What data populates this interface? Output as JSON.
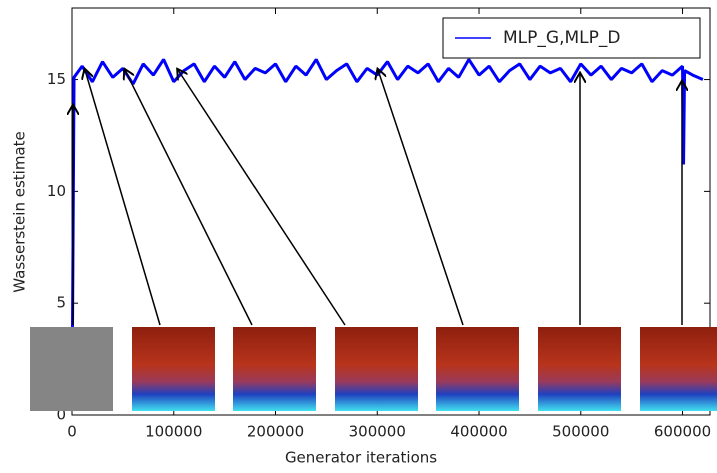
{
  "chart_data": {
    "type": "line",
    "xlabel": "Generator iterations",
    "ylabel": "Wasserstein estimate",
    "x": [
      0,
      2000,
      10000,
      20000,
      30000,
      40000,
      50000,
      60000,
      70000,
      80000,
      90000,
      100000,
      110000,
      120000,
      130000,
      140000,
      150000,
      160000,
      170000,
      180000,
      190000,
      200000,
      210000,
      220000,
      230000,
      240000,
      250000,
      260000,
      270000,
      280000,
      290000,
      300000,
      310000,
      320000,
      330000,
      340000,
      350000,
      360000,
      370000,
      380000,
      390000,
      400000,
      410000,
      420000,
      430000,
      440000,
      450000,
      460000,
      470000,
      480000,
      490000,
      500000,
      510000,
      520000,
      530000,
      540000,
      550000,
      560000,
      570000,
      580000,
      590000,
      600000,
      601000,
      602000,
      610000,
      620000
    ],
    "series": [
      {
        "name": "MLP_G,MLP_D",
        "color": "#0000ff",
        "values": [
          0.3,
          15.1,
          15.6,
          14.9,
          15.8,
          15.1,
          15.5,
          14.8,
          15.7,
          15.2,
          15.9,
          14.9,
          15.4,
          15.7,
          14.9,
          15.6,
          15.1,
          15.8,
          15.0,
          15.5,
          15.3,
          15.7,
          14.9,
          15.6,
          15.2,
          15.9,
          15.0,
          15.4,
          15.7,
          14.9,
          15.5,
          15.2,
          15.8,
          15.0,
          15.6,
          15.3,
          15.7,
          14.9,
          15.5,
          15.1,
          15.9,
          15.2,
          15.6,
          14.9,
          15.4,
          15.7,
          15.0,
          15.6,
          15.3,
          15.5,
          14.9,
          15.7,
          15.2,
          15.6,
          15.0,
          15.5,
          15.3,
          15.7,
          14.9,
          15.4,
          15.2,
          15.6,
          11.2,
          15.4,
          15.2,
          15.0
        ]
      }
    ],
    "xlim": [
      0,
      627000
    ],
    "ylim": [
      0,
      18.2
    ],
    "xticks": [
      0,
      100000,
      200000,
      300000,
      400000,
      500000,
      600000
    ],
    "yticks": [
      0,
      5,
      10,
      15
    ],
    "legend": "upper right"
  }
}
